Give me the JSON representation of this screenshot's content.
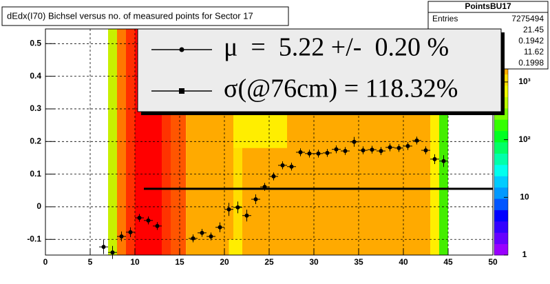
{
  "chart_data": {
    "type": "scatter",
    "title": "dEdx(I70) Bichsel versus no. of measured points for Sector 17",
    "xlim": [
      0,
      50
    ],
    "ylim": [
      -0.148,
      0.545
    ],
    "xticks": [
      0,
      5,
      10,
      15,
      20,
      25,
      30,
      35,
      40,
      45,
      50
    ],
    "yticks": [
      -0.1,
      0,
      0.1,
      0.2,
      0.3,
      0.4,
      0.5
    ],
    "grid": true,
    "color": "#000000",
    "x": [
      6.5,
      7.5,
      8.5,
      9.5,
      10.5,
      11.5,
      12.5,
      16.5,
      17.5,
      18.5,
      19.5,
      20.5,
      21.5,
      22.5,
      23.5,
      24.5,
      25.5,
      26.5,
      27.5,
      28.5,
      29.5,
      30.5,
      31.5,
      32.5,
      33.5,
      34.5,
      35.5,
      36.5,
      37.5,
      38.5,
      39.5,
      40.5,
      41.5,
      42.5,
      43.5,
      44.5
    ],
    "values": [
      -0.123,
      -0.14,
      -0.091,
      -0.078,
      -0.034,
      -0.042,
      -0.059,
      -0.097,
      -0.08,
      -0.091,
      -0.063,
      -0.008,
      -0.002,
      -0.027,
      0.023,
      0.061,
      0.093,
      0.127,
      0.123,
      0.167,
      0.163,
      0.163,
      0.165,
      0.176,
      0.171,
      0.199,
      0.173,
      0.175,
      0.171,
      0.182,
      0.18,
      0.186,
      0.203,
      0.173,
      0.146,
      0.14
    ],
    "y_errors": [
      0.022,
      0.02,
      0.015,
      0.015,
      0.012,
      0.012,
      0.012,
      0.012,
      0.012,
      0.012,
      0.015,
      0.02,
      0.018,
      0.018,
      0.015,
      0.012,
      0.012,
      0.012,
      0.012,
      0.012,
      0.012,
      0.012,
      0.012,
      0.012,
      0.012,
      0.015,
      0.012,
      0.012,
      0.012,
      0.012,
      0.012,
      0.012,
      0.012,
      0.012,
      0.015,
      0.018
    ],
    "x_error": 0.5,
    "fit_line": {
      "x": [
        11,
        50
      ],
      "y": 0.055
    },
    "heatmap_cells": [
      [
        7,
        8,
        -0.148,
        0.545,
        "#c8f000"
      ],
      [
        8,
        9,
        -0.148,
        0.545,
        "#ff7800"
      ],
      [
        9,
        10,
        -0.148,
        0.545,
        "#ff3000"
      ],
      [
        10,
        13,
        -0.148,
        0.545,
        "#ff0000"
      ],
      [
        13,
        14,
        -0.148,
        0.545,
        "#ff3300"
      ],
      [
        14,
        15.7,
        -0.148,
        0.545,
        "#ff5500"
      ],
      [
        15.7,
        21,
        -0.148,
        0.545,
        "#ffaa00"
      ],
      [
        21,
        22,
        -0.148,
        0.545,
        "#ffdd00"
      ],
      [
        22,
        43,
        -0.148,
        0.545,
        "#ffaa00"
      ],
      [
        21,
        27,
        0.18,
        0.545,
        "#ffee00"
      ],
      [
        20.5,
        22,
        -0.148,
        -0.1,
        "#ffee00"
      ],
      [
        43,
        44,
        -0.148,
        0.545,
        "#ffee00"
      ],
      [
        44,
        45,
        -0.148,
        0.545,
        "#44ee00"
      ]
    ],
    "legend": [
      {
        "label": "μ  =  5.22 +/-  0.20 %",
        "marker": "circle"
      },
      {
        "label": "σ(@76cm) = 118.32%",
        "marker": "square"
      }
    ],
    "stats": {
      "title": "PointsBU17",
      "entries_label": "Entries",
      "entries": "7275494",
      "values": [
        "21.45",
        "0.1942",
        "11.62",
        "0.1998"
      ]
    },
    "zlog": true,
    "zlim": [
      1,
      8300
    ],
    "zticks": [
      1,
      10,
      {
        "value": 100,
        "label": "10²"
      },
      {
        "value": 1000,
        "label": "10³"
      }
    ],
    "palette": [
      "#9900ff",
      "#6600ff",
      "#3300ff",
      "#0000ff",
      "#0055ff",
      "#0099ff",
      "#00ccff",
      "#00ffee",
      "#00ffaa",
      "#00ff66",
      "#00ff22",
      "#33ff00",
      "#77ff00",
      "#bbff00",
      "#eeff00",
      "#ffdd00",
      "#ffaa00",
      "#ff7700",
      "#ff4400",
      "#ff0000"
    ]
  }
}
